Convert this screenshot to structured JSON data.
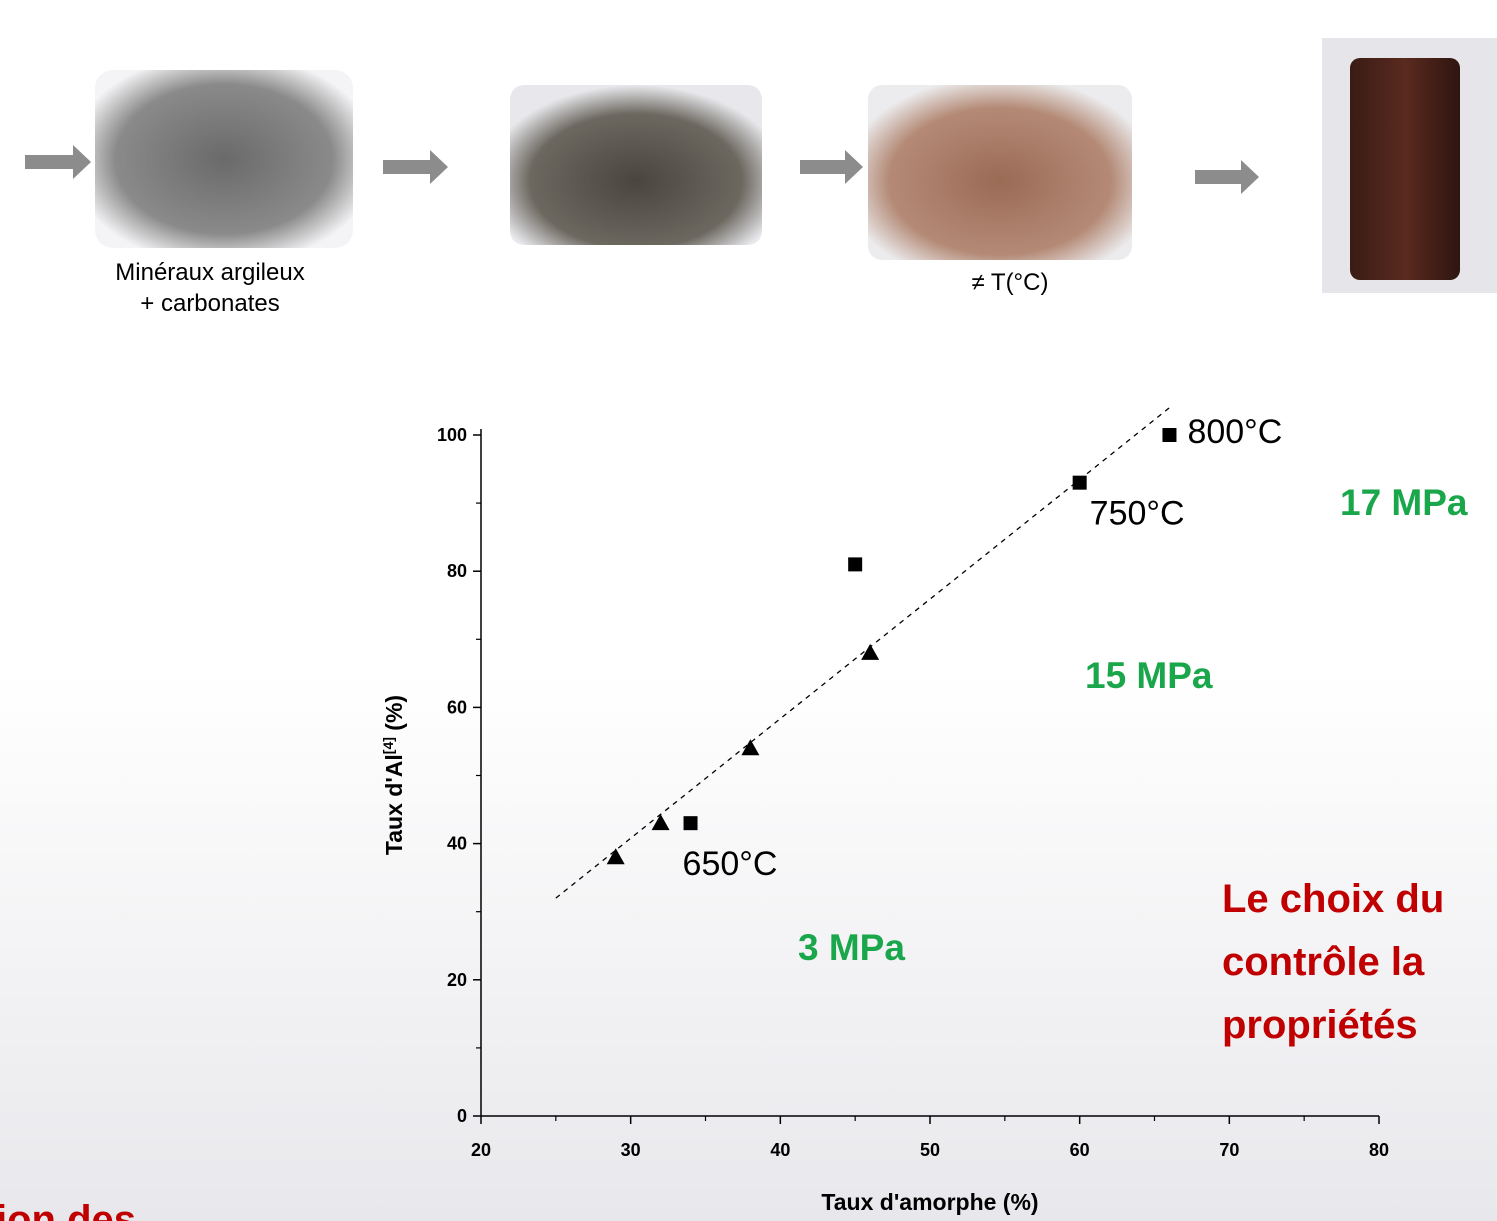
{
  "process": {
    "captions": [
      "Minéraux argileux",
      "+ carbonates",
      "≠ T(°C)"
    ]
  },
  "chart_data": {
    "type": "scatter",
    "x_label": "Taux d'amorphe (%)",
    "y_label": {
      "main": "Taux d'Al",
      "sup": "[4]",
      "unit": " (%)"
    },
    "xlim": [
      20,
      80
    ],
    "xticks": [
      20,
      30,
      40,
      50,
      60,
      70,
      80
    ],
    "ylim": [
      0,
      100
    ],
    "yticks": [
      0,
      20,
      40,
      60,
      80,
      100
    ],
    "series": [
      {
        "marker": "square",
        "color": "#000000",
        "x": [
          34,
          45,
          60,
          66
        ],
        "values": [
          43,
          81,
          93,
          100
        ],
        "point_labels": [
          "650°C",
          null,
          "750°C",
          "800°C"
        ]
      },
      {
        "marker": "triangle",
        "color": "#000000",
        "x": [
          29,
          32,
          38,
          46
        ],
        "values": [
          38,
          43,
          54,
          68
        ]
      }
    ],
    "trendline": {
      "x": [
        25,
        66
      ],
      "values": [
        32,
        104
      ],
      "style": "dashed"
    },
    "annotations": [
      "17 MPa",
      "15 MPa",
      "3 MPa"
    ],
    "conclusion": [
      "Le choix du",
      "contrôle la",
      "propriétés"
    ],
    "fragment": "ion des"
  }
}
